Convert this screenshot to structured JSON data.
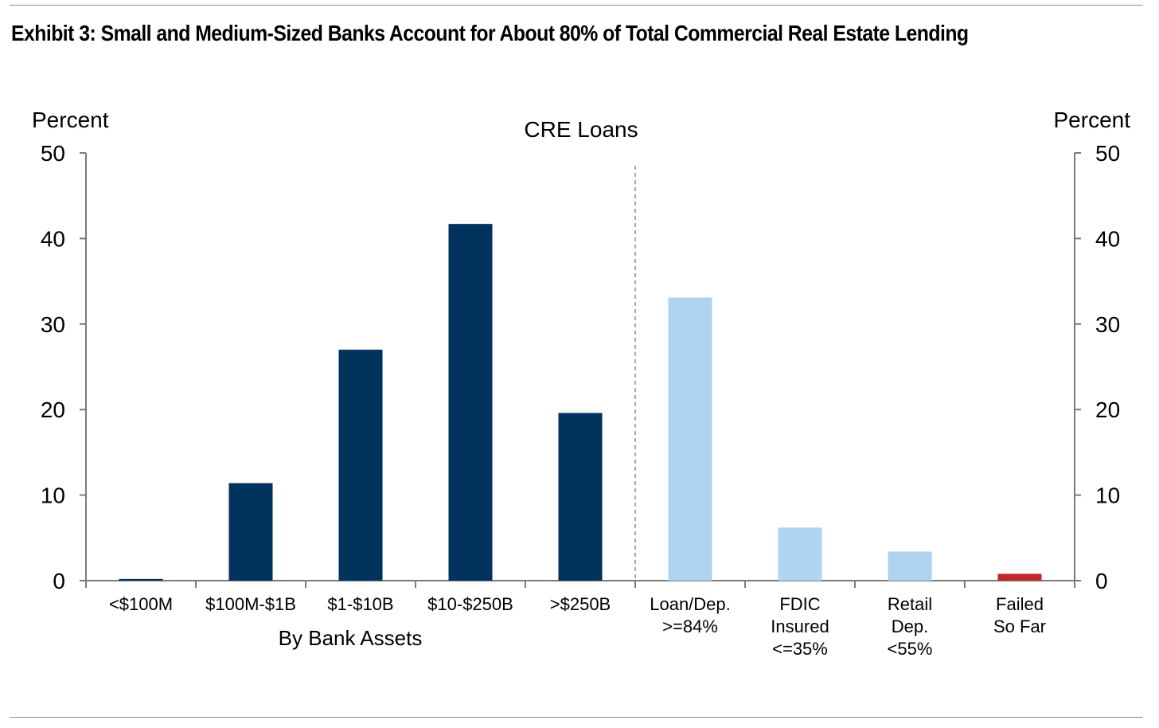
{
  "chart_data": {
    "type": "bar",
    "title": "Exhibit 3: Small and Medium-Sized Banks Account for About 80% of Total Commercial Real Estate Lending",
    "subtitle": "CRE Loans",
    "ylabel_left": "Percent",
    "ylabel_right": "Percent",
    "ylim": [
      0,
      50
    ],
    "yticks": [
      0,
      10,
      20,
      30,
      40,
      50
    ],
    "group_label": "By Bank Assets",
    "categories": [
      [
        "<$100M"
      ],
      [
        "$100M-$1B"
      ],
      [
        "$1-$10B"
      ],
      [
        "$10-$250B"
      ],
      [
        ">$250B"
      ],
      [
        "Loan/Dep.",
        ">=84%"
      ],
      [
        "FDIC",
        "Insured",
        "<=35%"
      ],
      [
        "Retail",
        "Dep.",
        "<55%"
      ],
      [
        "Failed",
        "So Far"
      ]
    ],
    "values": [
      0.2,
      11.4,
      27.0,
      41.7,
      19.6,
      33.1,
      6.2,
      3.4,
      0.8
    ],
    "bar_colors": [
      "#02325e",
      "#02325e",
      "#02325e",
      "#02325e",
      "#02325e",
      "#afd4f0",
      "#afd4f0",
      "#afd4f0",
      "#c0282e"
    ],
    "grid": false,
    "legend": "none",
    "divider_after_category": 4
  }
}
